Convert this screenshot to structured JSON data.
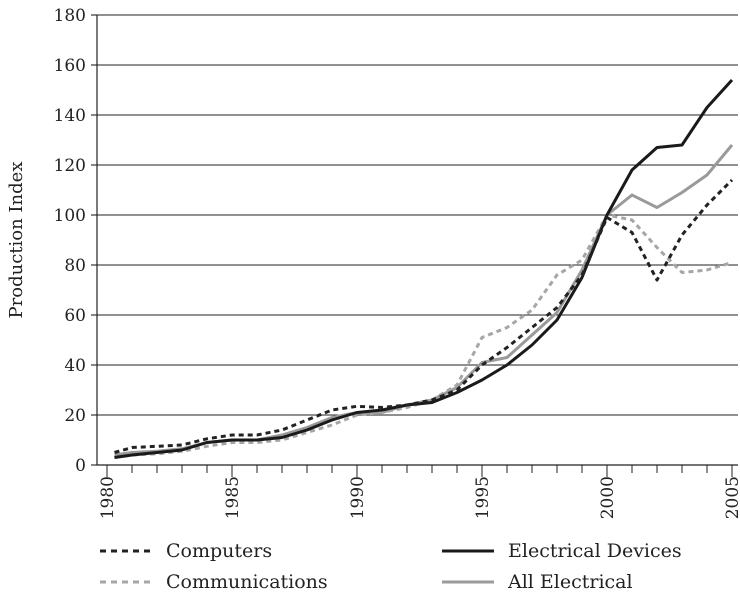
{
  "chart_data": {
    "type": "line",
    "title": "",
    "xlabel": "",
    "ylabel": "Production Index",
    "xlim": [
      1980,
      2005
    ],
    "ylim": [
      0,
      180
    ],
    "yticks": [
      0,
      20,
      40,
      60,
      80,
      100,
      120,
      140,
      160,
      180
    ],
    "xtick_labels": [
      "1980",
      "1985",
      "1990",
      "1995",
      "2000",
      "2005"
    ],
    "xtick_years": [
      1980,
      1985,
      1990,
      1995,
      2000,
      2005
    ],
    "grid": "horizontal",
    "legend_position": "bottom",
    "x": [
      1980.3,
      1981,
      1982,
      1983,
      1984,
      1985,
      1986,
      1987,
      1988,
      1989,
      1990,
      1991,
      1992,
      1993,
      1994,
      1995,
      1996,
      1997,
      1998,
      1999,
      2000,
      2001,
      2002,
      2003,
      2004,
      2005
    ],
    "series": [
      {
        "name": "Computers",
        "color": "#222222",
        "style": "dotted",
        "x": [
          1980.3,
          1981,
          1982,
          1983,
          1984,
          1985,
          1986,
          1987,
          1988,
          1989,
          1990,
          1991,
          1992,
          1993,
          1994,
          1995,
          1996,
          1997,
          1998,
          1999,
          2000,
          2001,
          2002,
          2003,
          2004,
          2005
        ],
        "values": [
          5,
          7,
          7.5,
          8,
          10.5,
          12,
          12,
          14,
          18,
          22,
          23.5,
          23,
          24,
          26,
          30,
          40,
          47,
          55,
          63,
          76,
          99,
          93,
          74,
          92,
          104,
          114
        ]
      },
      {
        "name": "Communications",
        "color": "#a6a6a6",
        "style": "dotted",
        "x": [
          1980.3,
          1981,
          1982,
          1983,
          1984,
          1985,
          1986,
          1987,
          1988,
          1989,
          1990,
          1991,
          1992,
          1993,
          1994,
          1995,
          1996,
          1997,
          1998,
          1999,
          2000,
          2001,
          2002,
          2003,
          2004,
          2005
        ],
        "values": [
          3,
          4,
          4.5,
          5.5,
          7.5,
          9,
          9,
          10,
          13,
          16,
          20,
          21,
          23,
          26,
          32,
          51,
          55,
          62,
          76,
          82,
          100,
          98,
          87,
          77,
          78,
          81
        ]
      },
      {
        "name": "Electrical Devices",
        "color": "#1a1a1a",
        "style": "solid",
        "x": [
          1980.3,
          1981,
          1982,
          1983,
          1984,
          1985,
          1986,
          1987,
          1988,
          1989,
          1990,
          1991,
          1992,
          1993,
          1994,
          1995,
          1996,
          1997,
          1998,
          1999,
          2000,
          2001,
          2002,
          2003,
          2004,
          2005
        ],
        "values": [
          3,
          4,
          5,
          6,
          9,
          10,
          10,
          11,
          14,
          18,
          21,
          22,
          24,
          25,
          29,
          34,
          40,
          48,
          58,
          75,
          100,
          118,
          127,
          128,
          143,
          154
        ]
      },
      {
        "name": "All Electrical",
        "color": "#9a9a9a",
        "style": "solid",
        "x": [
          1980.3,
          1981,
          1982,
          1983,
          1984,
          1985,
          1986,
          1987,
          1988,
          1989,
          1990,
          1991,
          1992,
          1993,
          1994,
          1995,
          1996,
          1997,
          1998,
          1999,
          2000,
          2001,
          2002,
          2003,
          2004,
          2005
        ],
        "values": [
          4,
          5,
          5.5,
          6.5,
          9,
          10,
          10,
          12,
          15,
          19,
          21,
          21,
          24,
          26,
          31,
          41,
          43,
          52,
          61,
          78,
          100,
          108,
          103,
          109,
          116,
          128
        ]
      }
    ],
    "legend": [
      {
        "label": "Computers",
        "series": 0
      },
      {
        "label": "Electrical Devices",
        "series": 2
      },
      {
        "label": "Communications",
        "series": 1
      },
      {
        "label": "All Electrical",
        "series": 3
      }
    ]
  }
}
